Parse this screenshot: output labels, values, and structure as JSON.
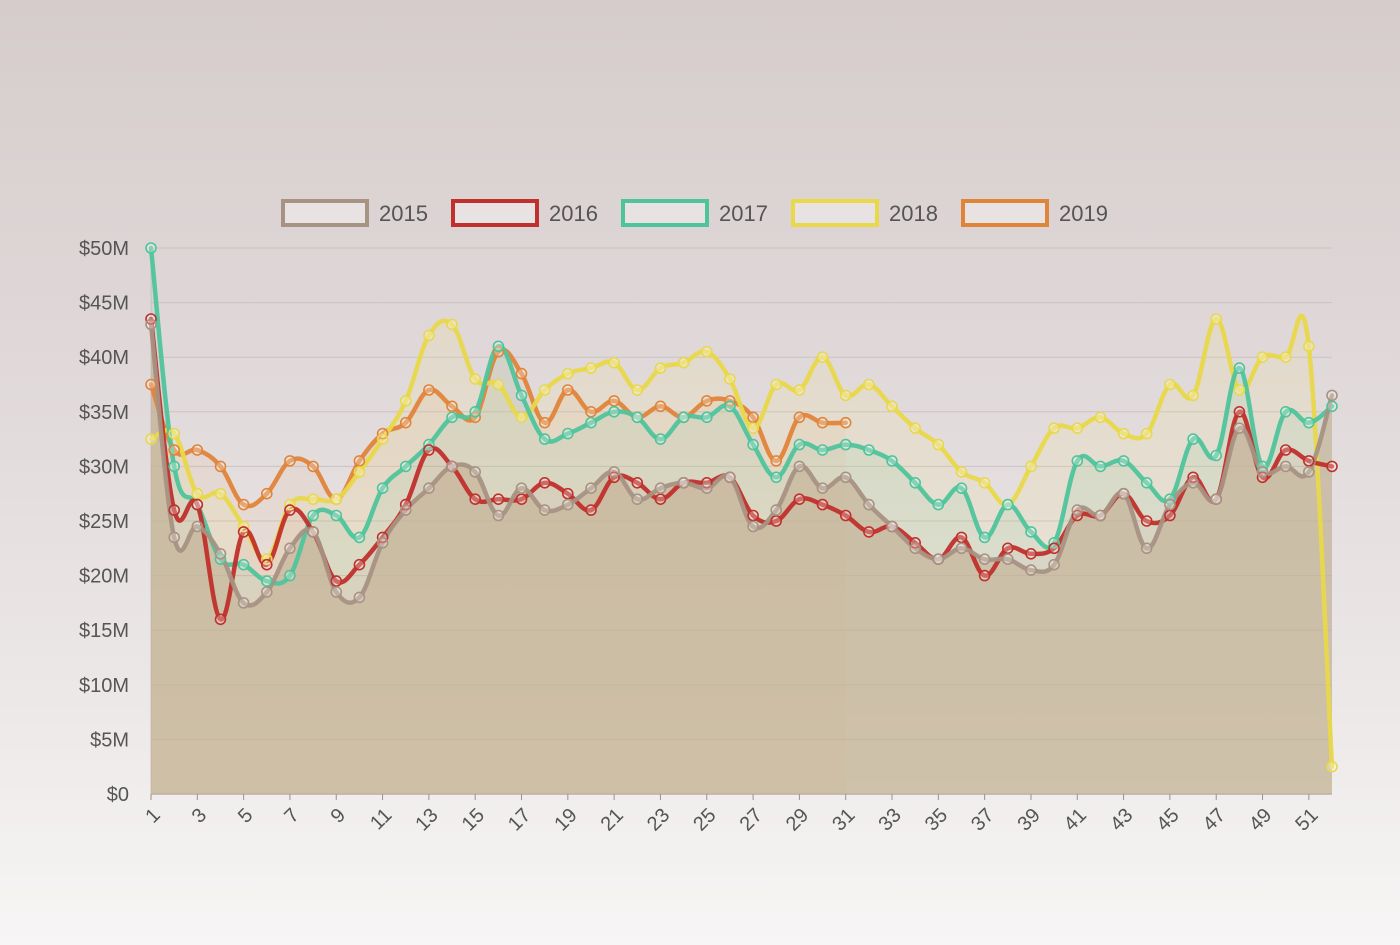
{
  "chart_data": {
    "type": "line",
    "title": "",
    "xlabel": "",
    "ylabel": "",
    "ylim": [
      0,
      50
    ],
    "yticks": [
      "$0",
      "$5M",
      "$10M",
      "$15M",
      "$20M",
      "$25M",
      "$30M",
      "$35M",
      "$40M",
      "$45M",
      "$50M"
    ],
    "xticks": [
      "1",
      "3",
      "5",
      "7",
      "9",
      "11",
      "13",
      "15",
      "17",
      "19",
      "21",
      "23",
      "25",
      "27",
      "29",
      "31",
      "33",
      "35",
      "37",
      "39",
      "41",
      "43",
      "45",
      "47",
      "49",
      "51"
    ],
    "legend_position": "top",
    "series": [
      {
        "name": "2015",
        "color": "#a89283",
        "fill": "rgba(196,178,150,0.65)",
        "values": [
          43,
          23.5,
          24.5,
          22,
          17.5,
          18.5,
          22.5,
          24,
          18.5,
          18,
          23,
          26,
          28,
          30,
          29.5,
          25.5,
          28,
          26,
          26.5,
          28,
          29.5,
          27,
          28,
          28.5,
          28,
          29,
          24.5,
          26,
          30,
          28,
          29,
          26.5,
          24.5,
          22.5,
          21.5,
          22.5,
          21.5,
          21.5,
          20.5,
          21,
          26,
          25.5,
          27.5,
          22.5,
          26.5,
          28.5,
          27,
          33.5,
          29.5,
          30,
          29.5,
          36.5
        ]
      },
      {
        "name": "2016",
        "color": "#c0302c",
        "fill": "rgba(200,80,70,0.05)",
        "values": [
          43.5,
          26,
          26.5,
          16,
          24,
          21,
          26,
          24,
          19.5,
          21,
          23.5,
          26.5,
          31.5,
          30,
          27,
          27,
          27,
          28.5,
          27.5,
          26,
          29,
          28.5,
          27,
          28.5,
          28.5,
          29,
          25.5,
          25,
          27,
          26.5,
          25.5,
          24,
          24.5,
          23,
          21.5,
          23.5,
          20,
          22.5,
          22,
          22.5,
          25.5,
          25.5,
          27.5,
          25,
          25.5,
          29,
          27,
          35,
          29,
          31.5,
          30.5,
          30
        ]
      },
      {
        "name": "2017",
        "color": "#4fc49c",
        "fill": "rgba(120,200,160,0.12)",
        "values": [
          50,
          30,
          26.5,
          21.5,
          21,
          19.5,
          20,
          25.5,
          25.5,
          23.5,
          28,
          30,
          32,
          34.5,
          35,
          41,
          36.5,
          32.5,
          33,
          34,
          35,
          34.5,
          32.5,
          34.5,
          34.5,
          35.5,
          32,
          29,
          32,
          31.5,
          32,
          31.5,
          30.5,
          28.5,
          26.5,
          28,
          23.5,
          26.5,
          24,
          23,
          30.5,
          30,
          30.5,
          28.5,
          27,
          32.5,
          31,
          39,
          30,
          35,
          34,
          35.5
        ]
      },
      {
        "name": "2018",
        "color": "#e8d84a",
        "fill": "rgba(240,225,130,0.14)",
        "values": [
          32.5,
          33,
          27.5,
          27.5,
          24.5,
          21.5,
          26.5,
          27,
          27,
          29.5,
          32.5,
          36,
          42,
          43,
          38,
          37.5,
          34.5,
          37,
          38.5,
          39,
          39.5,
          37,
          39,
          39.5,
          40.5,
          38,
          33.5,
          37.5,
          37,
          40,
          36.5,
          37.5,
          35.5,
          33.5,
          32,
          29.5,
          28.5,
          26.5,
          30,
          33.5,
          33.5,
          34.5,
          33,
          33,
          37.5,
          36.5,
          43.5,
          37,
          40,
          40,
          41,
          2.5
        ]
      },
      {
        "name": "2019",
        "color": "#e0843a",
        "fill": "rgba(230,150,90,0.08)",
        "values": [
          37.5,
          31.5,
          31.5,
          30,
          26.5,
          27.5,
          30.5,
          30,
          27,
          30.5,
          33,
          34,
          37,
          35.5,
          34.5,
          40.5,
          38.5,
          34,
          37,
          35,
          36,
          34.5,
          35.5,
          34.5,
          36,
          36,
          34.5,
          30.5,
          34.5,
          34,
          34
        ]
      }
    ]
  }
}
